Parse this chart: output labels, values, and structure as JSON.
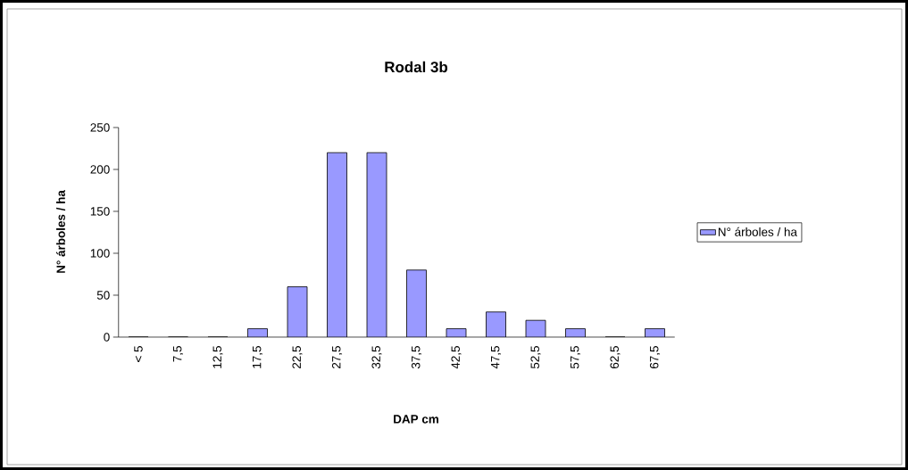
{
  "chart_data": {
    "type": "bar",
    "title": "Rodal 3b",
    "xlabel": "DAP cm",
    "ylabel": "N° árboles / ha",
    "categories": [
      "< 5",
      "7,5",
      "12,5",
      "17,5",
      "22,5",
      "27,5",
      "32,5",
      "37,5",
      "42,5",
      "47,5",
      "52,5",
      "57,5",
      "62,5",
      "67,5"
    ],
    "series": [
      {
        "name": "N° árboles / ha",
        "color": "#9999ff",
        "values": [
          0,
          0,
          0,
          10,
          60,
          220,
          220,
          80,
          10,
          30,
          20,
          10,
          0,
          10
        ]
      }
    ],
    "ylim": [
      0,
      250
    ],
    "yticks": [
      0,
      50,
      100,
      150,
      200,
      250
    ],
    "grid": false,
    "legend": "right"
  }
}
